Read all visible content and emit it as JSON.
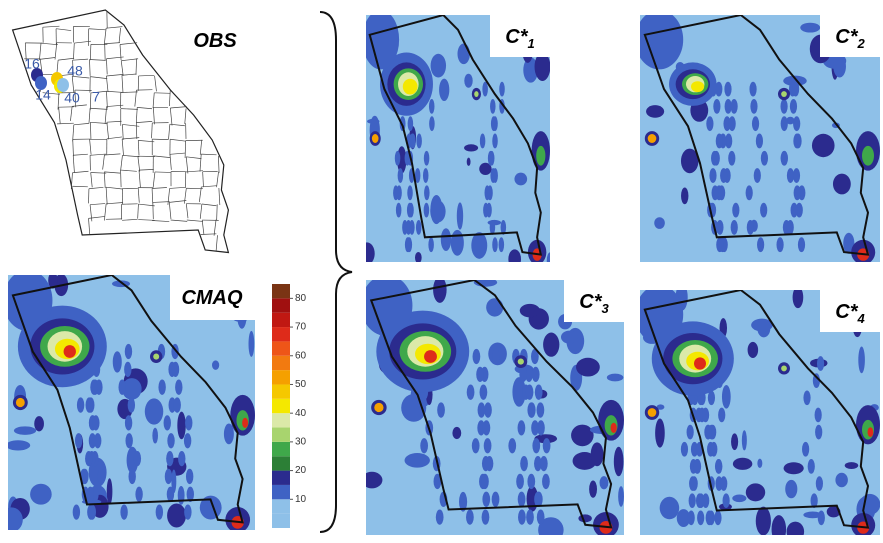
{
  "obs_panel": {
    "label": "OBS",
    "observations": [
      {
        "value": 16
      },
      {
        "value": 14
      },
      {
        "value": 48
      },
      {
        "value": 40
      },
      {
        "value": 7
      }
    ]
  },
  "cmaq_panel": {
    "label": "CMAQ"
  },
  "colorbar": {
    "ticks": [
      10,
      20,
      30,
      40,
      50,
      60,
      70,
      80
    ]
  },
  "model_panels": [
    {
      "name": "C*",
      "subscript": "1"
    },
    {
      "name": "C*",
      "subscript": "2"
    },
    {
      "name": "C*",
      "subscript": "3"
    },
    {
      "name": "C*",
      "subscript": "4"
    }
  ]
}
